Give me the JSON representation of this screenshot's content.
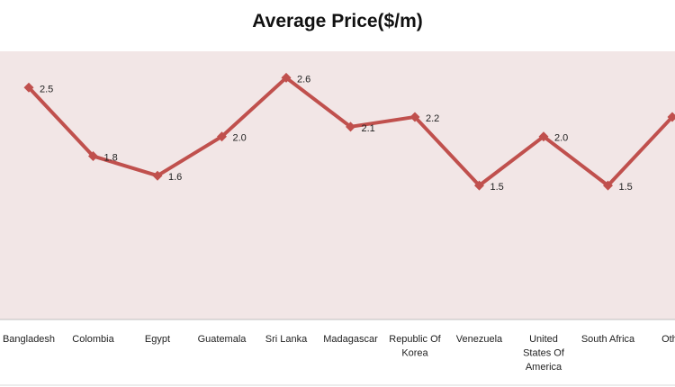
{
  "chart_data": {
    "type": "line",
    "title": "Average Price($/m)",
    "xlabel": "",
    "ylabel": "",
    "ylim": [
      0,
      2.8
    ],
    "grid": false,
    "legend": "none",
    "categories": [
      "Bangladesh",
      "Colombia",
      "Egypt",
      "Guatemala",
      "Sri Lanka",
      "Madagascar",
      "Republic Of Korea",
      "Venezuela",
      "United States Of America",
      "South Africa",
      "Others"
    ],
    "category_display": [
      [
        "Bangladesh"
      ],
      [
        "Colombia"
      ],
      [
        "Egypt"
      ],
      [
        "Guatemala"
      ],
      [
        "Sri Lanka"
      ],
      [
        "Madagascar"
      ],
      [
        "Republic Of",
        "Korea"
      ],
      [
        "Venezuela"
      ],
      [
        "United",
        "States Of",
        "America"
      ],
      [
        "South Africa"
      ],
      [
        "Othe"
      ]
    ],
    "series": [
      {
        "values": [
          2.5,
          1.8,
          1.6,
          2.0,
          2.6,
          2.1,
          2.2,
          1.5,
          2.0,
          1.5,
          2.2
        ],
        "labels": [
          "2.5",
          "1.8",
          "1.6",
          "2.0",
          "2.6",
          "2.1",
          "2.2",
          "1.5",
          "2.0",
          "1.5",
          ""
        ]
      }
    ],
    "colors": {
      "line": "#c0504d",
      "marker": "#c0504d",
      "plot_background": "#f2e6e6",
      "axis": "#bfbfbf"
    }
  }
}
